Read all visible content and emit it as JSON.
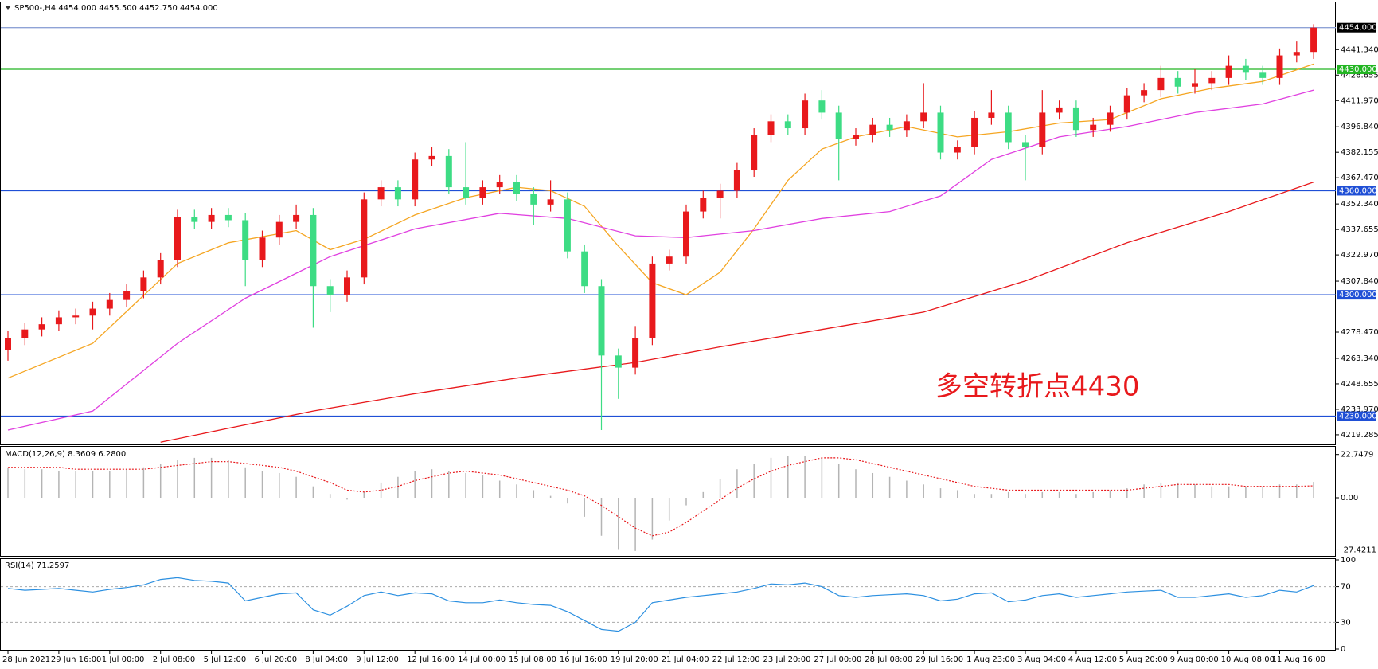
{
  "chart_data": [
    {
      "type": "candlestick",
      "title": "SP500-,H4  4454.000 4455.500 4452.750 4454.000",
      "annotation": "多空转折点4430",
      "annotation_color": "#e8191c",
      "up_color": "#e8191c",
      "down_color": "#3ddc84",
      "xticks": [
        {
          "value": 0,
          "label": "28 Jun 2021"
        },
        {
          "value": 3,
          "label": "29 Jun 16:00"
        },
        {
          "value": 6,
          "label": "1 Jul 00:00"
        },
        {
          "value": 9,
          "label": "2 Jul 08:00"
        },
        {
          "value": 12,
          "label": "5 Jul 12:00"
        },
        {
          "value": 15,
          "label": "6 Jul 20:00"
        },
        {
          "value": 18,
          "label": "8 Jul 04:00"
        },
        {
          "value": 21,
          "label": "9 Jul 12:00"
        },
        {
          "value": 24,
          "label": "12 Jul 16:00"
        },
        {
          "value": 27,
          "label": "14 Jul 00:00"
        },
        {
          "value": 30,
          "label": "15 Jul 08:00"
        },
        {
          "value": 33,
          "label": "16 Jul 16:00"
        },
        {
          "value": 36,
          "label": "19 Jul 20:00"
        },
        {
          "value": 39,
          "label": "21 Jul 04:00"
        },
        {
          "value": 42,
          "label": "22 Jul 12:00"
        },
        {
          "value": 45,
          "label": "23 Jul 20:00"
        },
        {
          "value": 48,
          "label": "27 Jul 00:00"
        },
        {
          "value": 51,
          "label": "28 Jul 08:00"
        },
        {
          "value": 54,
          "label": "29 Jul 16:00"
        },
        {
          "value": 57,
          "label": "1 Aug 23:00"
        },
        {
          "value": 60,
          "label": "3 Aug 04:00"
        },
        {
          "value": 63,
          "label": "4 Aug 12:00"
        },
        {
          "value": 66,
          "label": "5 Aug 20:00"
        },
        {
          "value": 69,
          "label": "9 Aug 00:00"
        },
        {
          "value": 72,
          "label": "10 Aug 08:00"
        },
        {
          "value": 75,
          "label": "11 Aug 16:00"
        }
      ],
      "open": [
        4268,
        4275,
        4280,
        4283,
        4287,
        4288,
        4292,
        4297,
        4302,
        4310,
        4320,
        4345,
        4342,
        4346,
        4343,
        4320,
        4333,
        4342,
        4346,
        4305,
        4300,
        4310,
        4355,
        4362,
        4355,
        4378,
        4380,
        4362,
        4356,
        4362,
        4365,
        4358,
        4352,
        4355,
        4325,
        4305,
        4265,
        4258,
        4275,
        4318,
        4322,
        4348,
        4356,
        4360,
        4372,
        4392,
        4400,
        4396,
        4412,
        4405,
        4390,
        4392,
        4398,
        4395,
        4400,
        4405,
        4382,
        4385,
        4402,
        4405,
        4388,
        4385,
        4405,
        4408,
        4395,
        4398,
        4405,
        4415,
        4418,
        4425,
        4420,
        4422,
        4425,
        4432,
        4428,
        4425,
        4438,
        4440
      ],
      "high": [
        4279,
        4284,
        4287,
        4291,
        4292,
        4296,
        4301,
        4306,
        4314,
        4324,
        4349,
        4349,
        4350,
        4350,
        4347,
        4337,
        4346,
        4352,
        4350,
        4309,
        4314,
        4359,
        4366,
        4366,
        4382,
        4385,
        4384,
        4388,
        4366,
        4369,
        4369,
        4362,
        4366,
        4359,
        4329,
        4309,
        4269,
        4282,
        4322,
        4326,
        4352,
        4360,
        4364,
        4376,
        4396,
        4404,
        4404,
        4416,
        4418,
        4409,
        4396,
        4402,
        4402,
        4404,
        4422,
        4409,
        4389,
        4406,
        4418,
        4409,
        4392,
        4418,
        4412,
        4412,
        4402,
        4409,
        4419,
        4422,
        4432,
        4429,
        4430,
        4429,
        4438,
        4436,
        4432,
        4442,
        4446,
        4456
      ],
      "low": [
        4262,
        4271,
        4276,
        4279,
        4283,
        4280,
        4288,
        4293,
        4298,
        4306,
        4316,
        4338,
        4338,
        4339,
        4305,
        4316,
        4329,
        4338,
        4281,
        4290,
        4296,
        4306,
        4351,
        4351,
        4351,
        4374,
        4358,
        4352,
        4352,
        4358,
        4354,
        4340,
        4348,
        4321,
        4301,
        4222,
        4240,
        4254,
        4271,
        4314,
        4318,
        4344,
        4344,
        4356,
        4368,
        4388,
        4392,
        4392,
        4401,
        4366,
        4386,
        4388,
        4391,
        4391,
        4396,
        4378,
        4378,
        4381,
        4398,
        4384,
        4366,
        4381,
        4401,
        4391,
        4391,
        4394,
        4401,
        4411,
        4414,
        4416,
        4416,
        4418,
        4421,
        4424,
        4421,
        4421,
        4434,
        4436
      ],
      "close": [
        4275,
        4280,
        4283,
        4287,
        4288,
        4292,
        4297,
        4302,
        4310,
        4320,
        4345,
        4342,
        4346,
        4343,
        4320,
        4333,
        4342,
        4346,
        4305,
        4300,
        4310,
        4355,
        4362,
        4355,
        4378,
        4380,
        4362,
        4356,
        4362,
        4365,
        4358,
        4352,
        4355,
        4325,
        4305,
        4265,
        4258,
        4275,
        4318,
        4322,
        4348,
        4356,
        4360,
        4372,
        4392,
        4400,
        4396,
        4412,
        4405,
        4390,
        4392,
        4398,
        4395,
        4400,
        4405,
        4382,
        4385,
        4402,
        4405,
        4388,
        4385,
        4405,
        4408,
        4395,
        4398,
        4405,
        4415,
        4418,
        4425,
        4420,
        4422,
        4425,
        4432,
        4428,
        4425,
        4438,
        4440,
        4454
      ],
      "moving_averages": [
        {
          "color": "#f5a623",
          "x": [
            0,
            5,
            10,
            13,
            17,
            19,
            21,
            24,
            27,
            30,
            32,
            34,
            36,
            38,
            40,
            42,
            44,
            46,
            48,
            50,
            53,
            56,
            59,
            62,
            65,
            68,
            71,
            74,
            77
          ],
          "values": [
            4252,
            4272,
            4318,
            4330,
            4337,
            4326,
            4332,
            4346,
            4356,
            4362,
            4360,
            4351,
            4328,
            4307,
            4300,
            4313,
            4338,
            4366,
            4384,
            4391,
            4397,
            4391,
            4394,
            4399,
            4401,
            4413,
            4419,
            4423,
            4433
          ]
        },
        {
          "color": "#e040e0",
          "x": [
            0,
            5,
            10,
            14,
            19,
            24,
            29,
            33,
            37,
            40,
            44,
            48,
            52,
            55,
            58,
            62,
            66,
            70,
            74,
            77
          ],
          "values": [
            4222,
            4233,
            4272,
            4298,
            4322,
            4338,
            4347,
            4344,
            4334,
            4333,
            4337,
            4344,
            4348,
            4357,
            4378,
            4391,
            4397,
            4405,
            4410,
            4418
          ]
        },
        {
          "color": "#e8191c",
          "x": [
            9,
            13,
            18,
            24,
            30,
            37,
            42,
            48,
            54,
            60,
            66,
            72,
            77
          ],
          "values": [
            4215,
            4223,
            4233,
            4243,
            4252,
            4261,
            4270,
            4280,
            4290,
            4308,
            4330,
            4348,
            4365
          ]
        }
      ],
      "levels": [
        {
          "value": 4454,
          "label": "4454.000",
          "color": "#8fa3d6",
          "label_background": "#000000"
        },
        {
          "value": 4430,
          "label": "4430.000",
          "color": "#22b522",
          "label_background": "#22b522"
        },
        {
          "value": 4360,
          "label": "4360.000",
          "color": "#1f4fd6",
          "label_background": "#1f4fd6"
        },
        {
          "value": 4300,
          "label": "4300.000",
          "color": "#1f4fd6",
          "label_background": "#1f4fd6"
        },
        {
          "value": 4230,
          "label": "4230.000",
          "color": "#1f4fd6",
          "label_background": "#1f4fd6"
        }
      ],
      "ylim": [
        4214.2,
        4468.1
      ],
      "yticks": [
        {
          "value": 4441.34,
          "label": "4441.340"
        },
        4426.655,
        {
          "value": 4411.97,
          "label": "4411.970"
        },
        {
          "value": 4396.84,
          "label": "4396.840"
        },
        4382.155,
        {
          "value": 4367.47,
          "label": "4367.470"
        },
        {
          "value": 4352.34,
          "label": "4352.340"
        },
        4337.655,
        {
          "value": 4322.97,
          "label": "4322.970"
        },
        {
          "value": 4307.84,
          "label": "4307.840"
        },
        {
          "value": 4278.47,
          "label": "4278.470"
        },
        {
          "value": 4263.34,
          "label": "4263.340"
        },
        4248.655,
        {
          "value": 4233.97,
          "label": "4233.970"
        },
        4219.285
      ]
    },
    {
      "type": "macd",
      "title": "MACD(12,26,9) 8.3609 6.2800",
      "histogram_color": "#b4b4b4",
      "signal_color": "#e8191c",
      "histogram": [
        16,
        15,
        15,
        14,
        14,
        14,
        14,
        15,
        16,
        18,
        20,
        21,
        21,
        20,
        16,
        14,
        13,
        11,
        6,
        2,
        -1,
        3,
        8,
        11,
        14,
        15,
        14,
        13,
        12,
        9,
        7,
        4,
        1,
        -3,
        -10,
        -20,
        -27,
        -28,
        -22,
        -12,
        -4,
        3,
        10,
        15,
        18,
        21,
        22,
        22,
        21,
        18,
        15,
        13,
        11,
        9,
        7,
        5,
        4,
        2,
        2,
        3,
        2,
        3,
        3,
        2,
        3,
        4,
        5,
        7,
        8,
        8,
        7,
        6,
        6,
        6,
        6,
        7,
        7,
        8.3609
      ],
      "signal": [
        16,
        16,
        16,
        16,
        15,
        15,
        15,
        15,
        15,
        16,
        17,
        18,
        19,
        19,
        18,
        17,
        16,
        14,
        11,
        8,
        4,
        3,
        4,
        6,
        9,
        11,
        13,
        14,
        13,
        12,
        10,
        8,
        6,
        4,
        1,
        -4,
        -10,
        -16,
        -20,
        -18,
        -13,
        -7,
        -1,
        5,
        10,
        14,
        17,
        19,
        21,
        21,
        20,
        18,
        16,
        14,
        12,
        10,
        8,
        6,
        5,
        4,
        4,
        4,
        4,
        4,
        4,
        4,
        4,
        5,
        6,
        7,
        7,
        7,
        7,
        6,
        6,
        6,
        6,
        6.28
      ],
      "ylim": [
        -30.15,
        26.39
      ],
      "yticks": [
        22.7479,
        {
          "value": 0,
          "label": "0.00"
        },
        -27.4211
      ]
    },
    {
      "type": "rsi",
      "title": "RSI(14) 71.2597",
      "color": "#2b8fe0",
      "values": [
        68,
        66,
        67,
        68,
        66,
        64,
        67,
        69,
        72,
        78,
        80,
        77,
        76,
        74,
        54,
        58,
        62,
        63,
        44,
        38,
        48,
        60,
        64,
        60,
        63,
        62,
        54,
        52,
        52,
        55,
        52,
        50,
        49,
        42,
        32,
        22,
        20,
        30,
        52,
        55,
        58,
        60,
        62,
        64,
        68,
        73,
        72,
        74,
        70,
        60,
        58,
        60,
        61,
        62,
        60,
        54,
        56,
        62,
        63,
        53,
        55,
        60,
        62,
        58,
        60,
        62,
        64,
        65,
        66,
        58,
        58,
        60,
        62,
        58,
        60,
        66,
        64,
        71.2597
      ],
      "levels": [
        70,
        30
      ],
      "ylim": [
        0,
        100
      ],
      "yticks": [
        100,
        70,
        30,
        0
      ]
    }
  ]
}
